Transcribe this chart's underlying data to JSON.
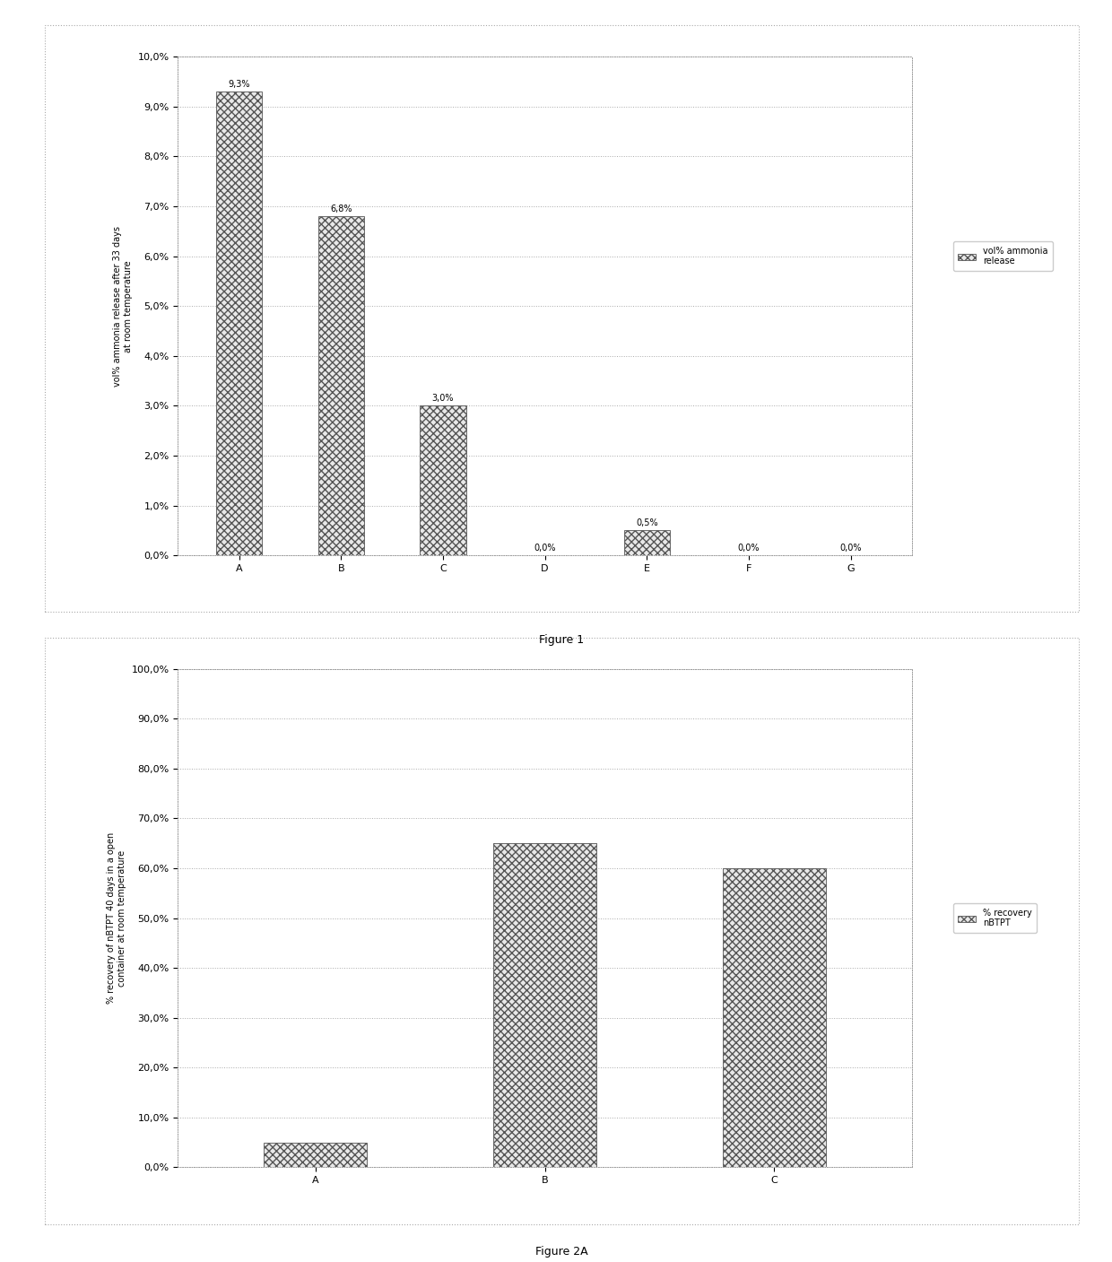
{
  "fig1": {
    "categories": [
      "A",
      "B",
      "C",
      "D",
      "E",
      "F",
      "G"
    ],
    "values": [
      9.3,
      6.8,
      3.0,
      0.0,
      0.5,
      0.0,
      0.0
    ],
    "value_labels": [
      "9,3%",
      "6,8%",
      "3,0%",
      "0,0%",
      "0,5%",
      "0,0%",
      "0,0%"
    ],
    "ylabel_line1": "vol% ammonia release after 33 days",
    "ylabel_line2": "at room temperature",
    "ylim": [
      0,
      10
    ],
    "yticks": [
      0.0,
      1.0,
      2.0,
      3.0,
      4.0,
      5.0,
      6.0,
      7.0,
      8.0,
      9.0,
      10.0
    ],
    "ytick_labels": [
      "0,0%",
      "1,0%",
      "2,0%",
      "3,0%",
      "4,0%",
      "5,0%",
      "6,0%",
      "7,0%",
      "8,0%",
      "9,0%",
      "10,0%"
    ],
    "legend_label": "vol% ammonia\nrelease",
    "figure_label": "Figure 1",
    "bar_color": "#e8e8e8",
    "hatch": "xxxx"
  },
  "fig2a": {
    "categories": [
      "A",
      "B",
      "C"
    ],
    "values": [
      5.0,
      65.0,
      60.0
    ],
    "ylabel_line1": "% recovery of nBTPT 40 days in a open",
    "ylabel_line2": "container at room temperature",
    "ylim": [
      0,
      100
    ],
    "yticks": [
      0.0,
      10.0,
      20.0,
      30.0,
      40.0,
      50.0,
      60.0,
      70.0,
      80.0,
      90.0,
      100.0
    ],
    "ytick_labels": [
      "0,0%",
      "10,0%",
      "20,0%",
      "30,0%",
      "40,0%",
      "50,0%",
      "60,0%",
      "70,0%",
      "80,0%",
      "90,0%",
      "100,0%"
    ],
    "legend_label": "% recovery\nnBTPT",
    "figure_label": "Figure 2A",
    "bar_color": "#e8e8e8",
    "hatch": "xxxx"
  },
  "background_color": "#ffffff",
  "plot_bg_color": "#ffffff",
  "grid_color": "#aaaaaa",
  "border_color": "#999999",
  "font_size": 8,
  "label_font_size": 7,
  "figure_label_font_size": 9
}
